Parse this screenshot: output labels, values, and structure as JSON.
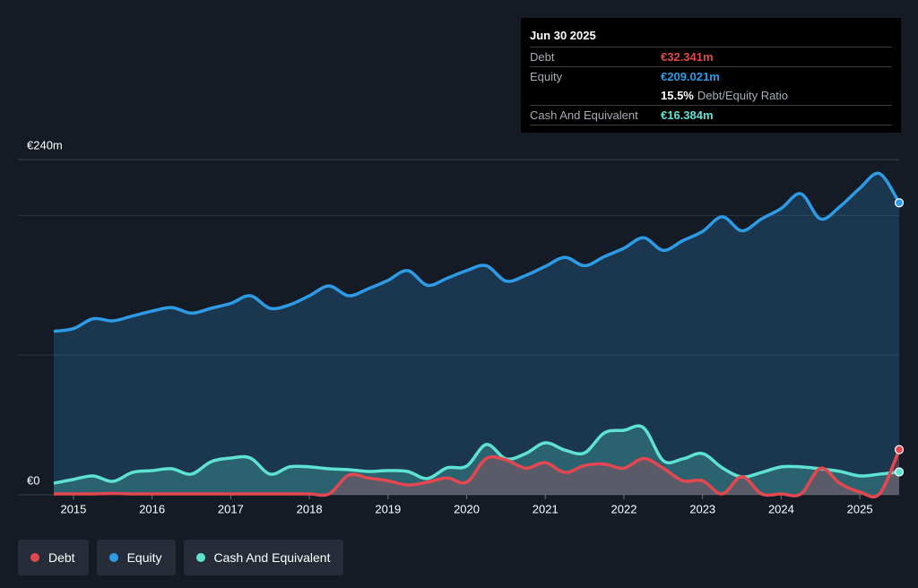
{
  "chart_data": {
    "type": "area-line",
    "xlim": [
      2014.75,
      2025.5
    ],
    "xticks": [
      2015,
      2016,
      2017,
      2018,
      2019,
      2020,
      2021,
      2022,
      2023,
      2024,
      2025
    ],
    "ylim": [
      0,
      240
    ],
    "yticks": [
      {
        "value": 0,
        "label": "€0"
      },
      {
        "value": 240,
        "label": "€240m"
      }
    ],
    "gridlines": [
      100,
      200
    ],
    "x": [
      2014.75,
      2015,
      2015.25,
      2015.5,
      2015.75,
      2016,
      2016.25,
      2016.5,
      2016.75,
      2017,
      2017.25,
      2017.5,
      2017.75,
      2018,
      2018.25,
      2018.5,
      2018.75,
      2019,
      2019.25,
      2019.5,
      2019.75,
      2020,
      2020.25,
      2020.5,
      2020.75,
      2021,
      2021.25,
      2021.5,
      2021.75,
      2022,
      2022.25,
      2022.5,
      2022.75,
      2023,
      2023.25,
      2023.5,
      2023.75,
      2024,
      2024.25,
      2024.5,
      2024.75,
      2025,
      2025.25,
      2025.5
    ],
    "series": [
      {
        "name": "Debt",
        "color": "#e4474f",
        "values": [
          0,
          0,
          0,
          1,
          0,
          0,
          0,
          0,
          0,
          0,
          0,
          0,
          0,
          0,
          0,
          14,
          12,
          10,
          7,
          9,
          12,
          9,
          26,
          25,
          19,
          23,
          16,
          21,
          22,
          19,
          26,
          19,
          10,
          10,
          0,
          13,
          0,
          0,
          0,
          19,
          8,
          2,
          0,
          32.341
        ]
      },
      {
        "name": "Equity",
        "color": "#2e9be6",
        "values": [
          117,
          119,
          126,
          124.5,
          128,
          131.5,
          134,
          130,
          133.5,
          137,
          142.5,
          133.5,
          136,
          142.5,
          149.5,
          142.5,
          147.5,
          153.5,
          160.5,
          150,
          155,
          160.5,
          164,
          153,
          157,
          163.5,
          170,
          164,
          170.5,
          176.5,
          184,
          175,
          182,
          188.5,
          199,
          189,
          197.5,
          205,
          215.5,
          197.5,
          206.5,
          219.5,
          230,
          209.021
        ]
      },
      {
        "name": "Cash And Equivalent",
        "color": "#5ee3d3",
        "values": [
          8.3,
          11,
          13.5,
          9.6,
          16,
          17.3,
          18.6,
          14.8,
          23.7,
          26.3,
          26.3,
          14.8,
          20,
          20,
          18.6,
          18,
          16.7,
          17.3,
          16.7,
          11.6,
          19.3,
          20.5,
          36,
          25.7,
          29.5,
          37.2,
          32,
          30,
          44.3,
          46.2,
          48,
          24.4,
          25.7,
          29.5,
          19.3,
          12.8,
          16,
          20,
          20,
          18.6,
          16.7,
          13.5,
          14.8,
          16.384
        ]
      }
    ],
    "tooltip": {
      "date": "Jun 30 2025",
      "debt_label": "Debt",
      "debt_value": "€32.341m",
      "equity_label": "Equity",
      "equity_value": "€209.021m",
      "ratio_value": "15.5%",
      "ratio_label": "Debt/Equity Ratio",
      "cash_label": "Cash And Equivalent",
      "cash_value": "€16.384m"
    }
  }
}
